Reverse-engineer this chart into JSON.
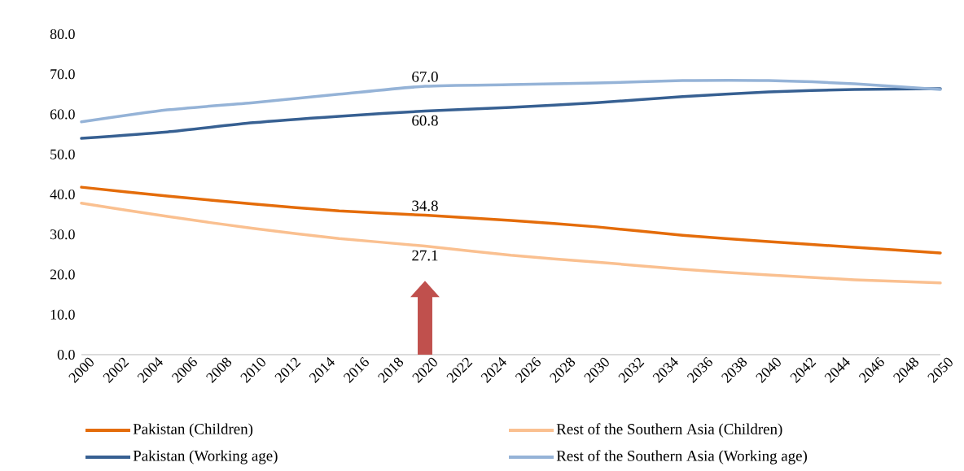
{
  "chart_data": {
    "type": "line",
    "x": [
      2000,
      2005,
      2010,
      2015,
      2020,
      2025,
      2030,
      2035,
      2040,
      2045,
      2050
    ],
    "xlim": [
      2000,
      2050
    ],
    "xticks": [
      2000,
      2002,
      2004,
      2006,
      2008,
      2010,
      2012,
      2014,
      2016,
      2018,
      2020,
      2022,
      2024,
      2026,
      2028,
      2030,
      2032,
      2034,
      2036,
      2038,
      2040,
      2042,
      2044,
      2046,
      2048,
      2050
    ],
    "ylim": [
      0,
      80
    ],
    "yticks": [
      {
        "value": 0,
        "label": "0.0"
      },
      {
        "value": 10,
        "label": "10.0"
      },
      {
        "value": 20,
        "label": "20.0"
      },
      {
        "value": 30,
        "label": "30.0"
      },
      {
        "value": 40,
        "label": "40.0"
      },
      {
        "value": 50,
        "label": "50.0"
      },
      {
        "value": 60,
        "label": "60.0"
      },
      {
        "value": 70,
        "label": "70.0"
      },
      {
        "value": 80,
        "label": "80.0"
      }
    ],
    "legend": "bottom",
    "marker": "none",
    "line_style": "solid",
    "series": [
      {
        "name": "Pakistan (Children)",
        "color": "#e46c0a",
        "values": [
          41.8,
          39.6,
          37.6,
          35.9,
          34.8,
          33.5,
          31.9,
          29.8,
          28.2,
          26.8,
          25.4
        ],
        "value_labels": [
          null,
          null,
          null,
          null,
          "34.8",
          null,
          null,
          null,
          null,
          null,
          null
        ]
      },
      {
        "name": "Rest of the Southern Asia (Children)",
        "color": "#fac090",
        "values": [
          37.8,
          34.5,
          31.5,
          29.0,
          27.1,
          24.8,
          23.1,
          21.3,
          19.9,
          18.7,
          17.9
        ],
        "value_labels": [
          null,
          null,
          null,
          null,
          "27.1",
          null,
          null,
          null,
          null,
          null,
          null
        ]
      },
      {
        "name": "Pakistan (Working age)",
        "color": "#376092",
        "values": [
          54.0,
          55.6,
          57.9,
          59.5,
          60.8,
          61.7,
          62.9,
          64.4,
          65.6,
          66.2,
          66.4
        ],
        "value_labels": [
          null,
          null,
          null,
          null,
          "60.8",
          null,
          null,
          null,
          null,
          null,
          null
        ]
      },
      {
        "name": "Rest of the Southern Asia (Working age)",
        "color": "#95b3d7",
        "values": [
          58.1,
          61.1,
          62.9,
          65.0,
          67.0,
          67.4,
          67.8,
          68.4,
          68.4,
          67.6,
          66.2
        ],
        "value_labels": [
          null,
          null,
          null,
          null,
          "67.0",
          null,
          null,
          null,
          null,
          null,
          null
        ]
      }
    ]
  }
}
